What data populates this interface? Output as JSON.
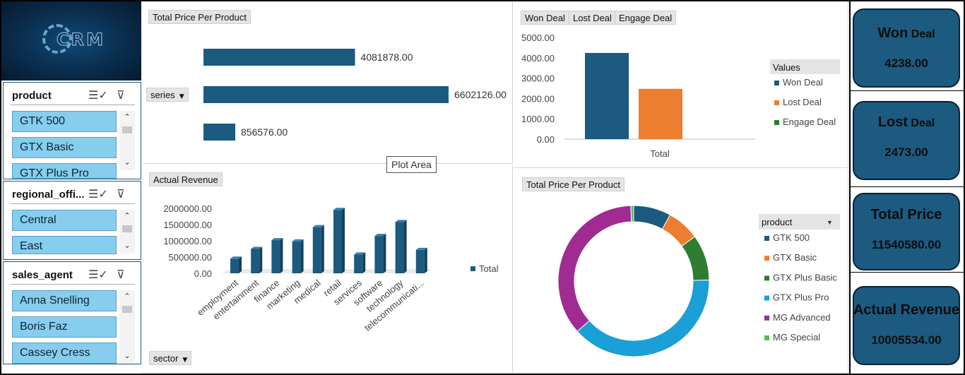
{
  "logo": {
    "text": "CRM"
  },
  "slicers": [
    {
      "title": "product",
      "items": [
        "GTK 500",
        "GTX Basic",
        "GTX Plus Pro"
      ]
    },
    {
      "title": "regional_offi...",
      "items": [
        "Central",
        "East"
      ]
    },
    {
      "title": "sales_agent",
      "items": [
        "Anna Snelling",
        "Boris Faz",
        "Cassey Cress"
      ]
    }
  ],
  "filter_buttons": {
    "series": "series",
    "sector": "sector"
  },
  "plot_area_tooltip": "Plot Area",
  "kpis": [
    {
      "label_main": "Won",
      "label_small": " Deal",
      "value": "4238.00"
    },
    {
      "label_main": "Lost",
      "label_small": " Deal",
      "value": "2473.00"
    },
    {
      "label_main": "Total Price",
      "label_small": "",
      "value": "11540580.00"
    },
    {
      "label_main": "Actual Revenue",
      "label_small": "",
      "value": "10005534.00"
    }
  ],
  "colors": {
    "bar_blue": "#1c5a7f",
    "won": "#1c5a7f",
    "lost": "#ed7d31",
    "engage": "#2e7d32",
    "gtk500": "#1c5a7f",
    "gtxbasic": "#ed7d31",
    "gtxplusbasic": "#2e7d32",
    "gtxpluspro": "#1a9fd6",
    "mgadvanced": "#a02b93",
    "mgspecial": "#5cb85c"
  },
  "chart_data": [
    {
      "type": "bar",
      "orientation": "horizontal",
      "title": "Total Price Per Product",
      "categories": [
        "",
        "",
        ""
      ],
      "values": [
        4081878.0,
        6602126.0,
        856576.0
      ],
      "data_labels": [
        "4081878.00",
        "6602126.00",
        "856576.00"
      ],
      "xlim": [
        0,
        6602126
      ]
    },
    {
      "type": "bar",
      "title_buttons": [
        "Won Deal",
        "Lost Deal",
        "Engage Deal"
      ],
      "categories": [
        "Total"
      ],
      "series": [
        {
          "name": "Won Deal",
          "values": [
            4238
          ]
        },
        {
          "name": "Lost Deal",
          "values": [
            2473
          ]
        },
        {
          "name": "Engage Deal",
          "values": [
            0
          ]
        }
      ],
      "yticks": [
        "5000.00",
        "4000.00",
        "3000.00",
        "2000.00",
        "1000.00",
        "0.00"
      ],
      "ylim": [
        0,
        5000
      ],
      "legend_title": "Values",
      "legend": "right"
    },
    {
      "type": "bar",
      "title": "Actual Revenue",
      "categories": [
        "employment",
        "entertainment",
        "finance",
        "marketing",
        "medical",
        "retail",
        "services",
        "software",
        "technology",
        "telecommunicati..."
      ],
      "series": [
        {
          "name": "Total",
          "values": [
            450000,
            750000,
            1020000,
            980000,
            1420000,
            1950000,
            580000,
            1150000,
            1580000,
            720000
          ]
        }
      ],
      "yticks": [
        "2000000.00",
        "1500000.00",
        "1000000.00",
        "500000.00",
        "0.00"
      ],
      "ylim": [
        0,
        2000000
      ],
      "legend": "right"
    },
    {
      "type": "pie",
      "donut": true,
      "title": "Total Price Per Product",
      "legend_title": "product",
      "categories": [
        "GTK 500",
        "GTX Basic",
        "GTX Plus Basic",
        "GTX Plus Pro",
        "MG Advanced",
        "MG Special"
      ],
      "values": [
        8.0,
        7.0,
        9.8,
        38.6,
        36.0,
        0.6
      ],
      "legend": "right"
    }
  ]
}
